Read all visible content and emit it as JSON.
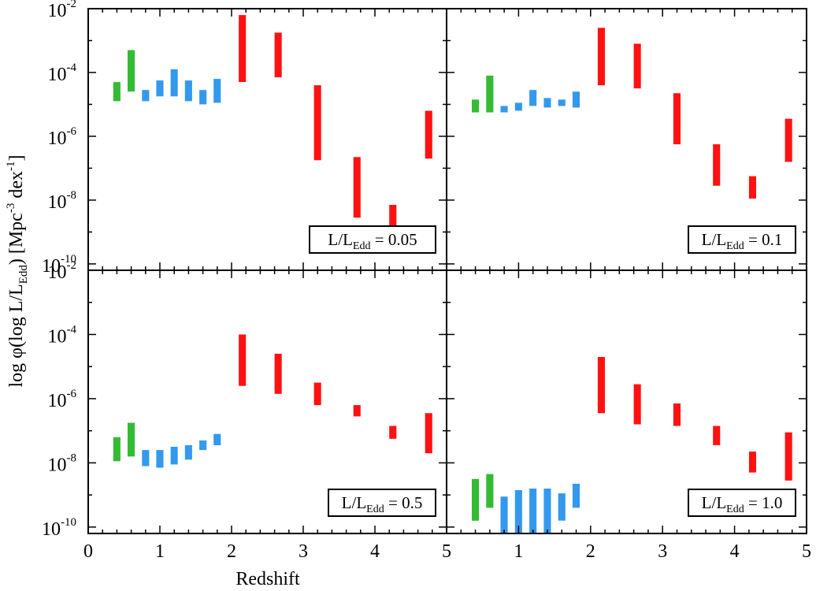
{
  "chart_data": {
    "type": "bar",
    "layout": "2x2 grid of panels sharing axes",
    "xlabel": "Redshift",
    "ylabel": "log φ(log L/L<sub>Edd</sub>) [Mpc<sup>-3</sup> dex<sup>-1</sup>]",
    "ylabel_parts": {
      "pre": "log φ(log L/L",
      "sub": "Edd",
      "mid": ") [Mpc",
      "sup1": "-3",
      "mid2": " dex",
      "sup2": "-1",
      "post": "]"
    },
    "xlim": [
      0,
      5
    ],
    "ylim_exponent": [
      -10.2,
      -2
    ],
    "yscale": "log",
    "x_ticks": [
      "0",
      "1",
      "2",
      "3",
      "4",
      "5"
    ],
    "y_ticks": [
      {
        "base": "10",
        "exp": "-2",
        "value_exp": -2
      },
      {
        "base": "10",
        "exp": "-4",
        "value_exp": -4
      },
      {
        "base": "10",
        "exp": "-6",
        "value_exp": -6
      },
      {
        "base": "10",
        "exp": "-8",
        "value_exp": -8
      },
      {
        "base": "10",
        "exp": "-10",
        "value_exp": -10
      }
    ],
    "series_colors": {
      "green": "#33bb33",
      "blue": "#3399ee",
      "red": "#ff1111"
    },
    "bar_width_redshift": 0.1,
    "panels": [
      {
        "id": "p005",
        "label_pre": "L/L",
        "label_sub": "Edd",
        "label_post": " = 0.05",
        "bars": [
          {
            "z": 0.4,
            "lo": -4.9,
            "hi": -4.3,
            "color": "green"
          },
          {
            "z": 0.6,
            "lo": -4.6,
            "hi": -3.3,
            "color": "green"
          },
          {
            "z": 0.8,
            "lo": -4.9,
            "hi": -4.55,
            "color": "blue"
          },
          {
            "z": 1.0,
            "lo": -4.75,
            "hi": -4.25,
            "color": "blue"
          },
          {
            "z": 1.2,
            "lo": -4.75,
            "hi": -3.9,
            "color": "blue"
          },
          {
            "z": 1.4,
            "lo": -4.9,
            "hi": -4.25,
            "color": "blue"
          },
          {
            "z": 1.6,
            "lo": -5.0,
            "hi": -4.55,
            "color": "blue"
          },
          {
            "z": 1.8,
            "lo": -4.95,
            "hi": -4.2,
            "color": "blue"
          },
          {
            "z": 2.15,
            "lo": -4.3,
            "hi": -2.2,
            "color": "red"
          },
          {
            "z": 2.65,
            "lo": -4.15,
            "hi": -2.75,
            "color": "red"
          },
          {
            "z": 3.2,
            "lo": -6.75,
            "hi": -4.4,
            "color": "red"
          },
          {
            "z": 3.75,
            "lo": -8.55,
            "hi": -6.65,
            "color": "red"
          },
          {
            "z": 4.25,
            "lo": -9.5,
            "hi": -8.15,
            "color": "red"
          },
          {
            "z": 4.75,
            "lo": -6.7,
            "hi": -5.2,
            "color": "red"
          }
        ]
      },
      {
        "id": "p01",
        "label_pre": "L/L",
        "label_sub": "Edd",
        "label_post": " = 0.1",
        "bars": [
          {
            "z": 0.4,
            "lo": -5.25,
            "hi": -4.85,
            "color": "green"
          },
          {
            "z": 0.6,
            "lo": -5.25,
            "hi": -4.1,
            "color": "green"
          },
          {
            "z": 0.8,
            "lo": -5.25,
            "hi": -5.05,
            "color": "blue"
          },
          {
            "z": 1.0,
            "lo": -5.2,
            "hi": -4.95,
            "color": "blue"
          },
          {
            "z": 1.2,
            "lo": -5.05,
            "hi": -4.55,
            "color": "blue"
          },
          {
            "z": 1.4,
            "lo": -5.1,
            "hi": -4.8,
            "color": "blue"
          },
          {
            "z": 1.6,
            "lo": -5.05,
            "hi": -4.85,
            "color": "blue"
          },
          {
            "z": 1.8,
            "lo": -5.1,
            "hi": -4.6,
            "color": "blue"
          },
          {
            "z": 2.15,
            "lo": -4.4,
            "hi": -2.6,
            "color": "red"
          },
          {
            "z": 2.65,
            "lo": -4.5,
            "hi": -3.1,
            "color": "red"
          },
          {
            "z": 3.2,
            "lo": -6.25,
            "hi": -4.65,
            "color": "red"
          },
          {
            "z": 3.75,
            "lo": -7.55,
            "hi": -6.25,
            "color": "red"
          },
          {
            "z": 4.25,
            "lo": -7.95,
            "hi": -7.25,
            "color": "red"
          },
          {
            "z": 4.75,
            "lo": -6.8,
            "hi": -5.45,
            "color": "red"
          }
        ]
      },
      {
        "id": "p05",
        "label_pre": "L/L",
        "label_sub": "Edd",
        "label_post": " = 0.5",
        "bars": [
          {
            "z": 0.4,
            "lo": -7.95,
            "hi": -7.2,
            "color": "green"
          },
          {
            "z": 0.6,
            "lo": -7.8,
            "hi": -6.75,
            "color": "green"
          },
          {
            "z": 0.8,
            "lo": -8.1,
            "hi": -7.6,
            "color": "blue"
          },
          {
            "z": 1.0,
            "lo": -8.15,
            "hi": -7.6,
            "color": "blue"
          },
          {
            "z": 1.2,
            "lo": -8.05,
            "hi": -7.5,
            "color": "blue"
          },
          {
            "z": 1.4,
            "lo": -7.9,
            "hi": -7.45,
            "color": "blue"
          },
          {
            "z": 1.6,
            "lo": -7.6,
            "hi": -7.3,
            "color": "blue"
          },
          {
            "z": 1.8,
            "lo": -7.45,
            "hi": -7.1,
            "color": "blue"
          },
          {
            "z": 2.15,
            "lo": -5.6,
            "hi": -4.0,
            "color": "red"
          },
          {
            "z": 2.65,
            "lo": -5.85,
            "hi": -4.6,
            "color": "red"
          },
          {
            "z": 3.2,
            "lo": -6.2,
            "hi": -5.5,
            "color": "red"
          },
          {
            "z": 3.75,
            "lo": -6.55,
            "hi": -6.2,
            "color": "red"
          },
          {
            "z": 4.25,
            "lo": -7.25,
            "hi": -6.85,
            "color": "red"
          },
          {
            "z": 4.75,
            "lo": -7.7,
            "hi": -6.45,
            "color": "red"
          }
        ]
      },
      {
        "id": "p10",
        "label_pre": "L/L",
        "label_sub": "Edd",
        "label_post": " = 1.0",
        "bars": [
          {
            "z": 0.4,
            "lo": -9.8,
            "hi": -8.5,
            "color": "green"
          },
          {
            "z": 0.6,
            "lo": -9.4,
            "hi": -8.35,
            "color": "green"
          },
          {
            "z": 0.8,
            "lo": -10.2,
            "hi": -9.05,
            "color": "blue"
          },
          {
            "z": 1.0,
            "lo": -10.2,
            "hi": -8.85,
            "color": "blue"
          },
          {
            "z": 1.2,
            "lo": -10.2,
            "hi": -8.8,
            "color": "blue"
          },
          {
            "z": 1.4,
            "lo": -10.2,
            "hi": -8.8,
            "color": "blue"
          },
          {
            "z": 1.6,
            "lo": -9.8,
            "hi": -8.95,
            "color": "blue"
          },
          {
            "z": 1.8,
            "lo": -9.4,
            "hi": -8.65,
            "color": "blue"
          },
          {
            "z": 2.15,
            "lo": -6.45,
            "hi": -4.7,
            "color": "red"
          },
          {
            "z": 2.65,
            "lo": -6.8,
            "hi": -5.55,
            "color": "red"
          },
          {
            "z": 3.2,
            "lo": -6.85,
            "hi": -6.15,
            "color": "red"
          },
          {
            "z": 3.75,
            "lo": -7.45,
            "hi": -6.85,
            "color": "red"
          },
          {
            "z": 4.25,
            "lo": -8.3,
            "hi": -7.65,
            "color": "red"
          },
          {
            "z": 4.75,
            "lo": -8.55,
            "hi": -7.05,
            "color": "red"
          }
        ]
      }
    ]
  }
}
